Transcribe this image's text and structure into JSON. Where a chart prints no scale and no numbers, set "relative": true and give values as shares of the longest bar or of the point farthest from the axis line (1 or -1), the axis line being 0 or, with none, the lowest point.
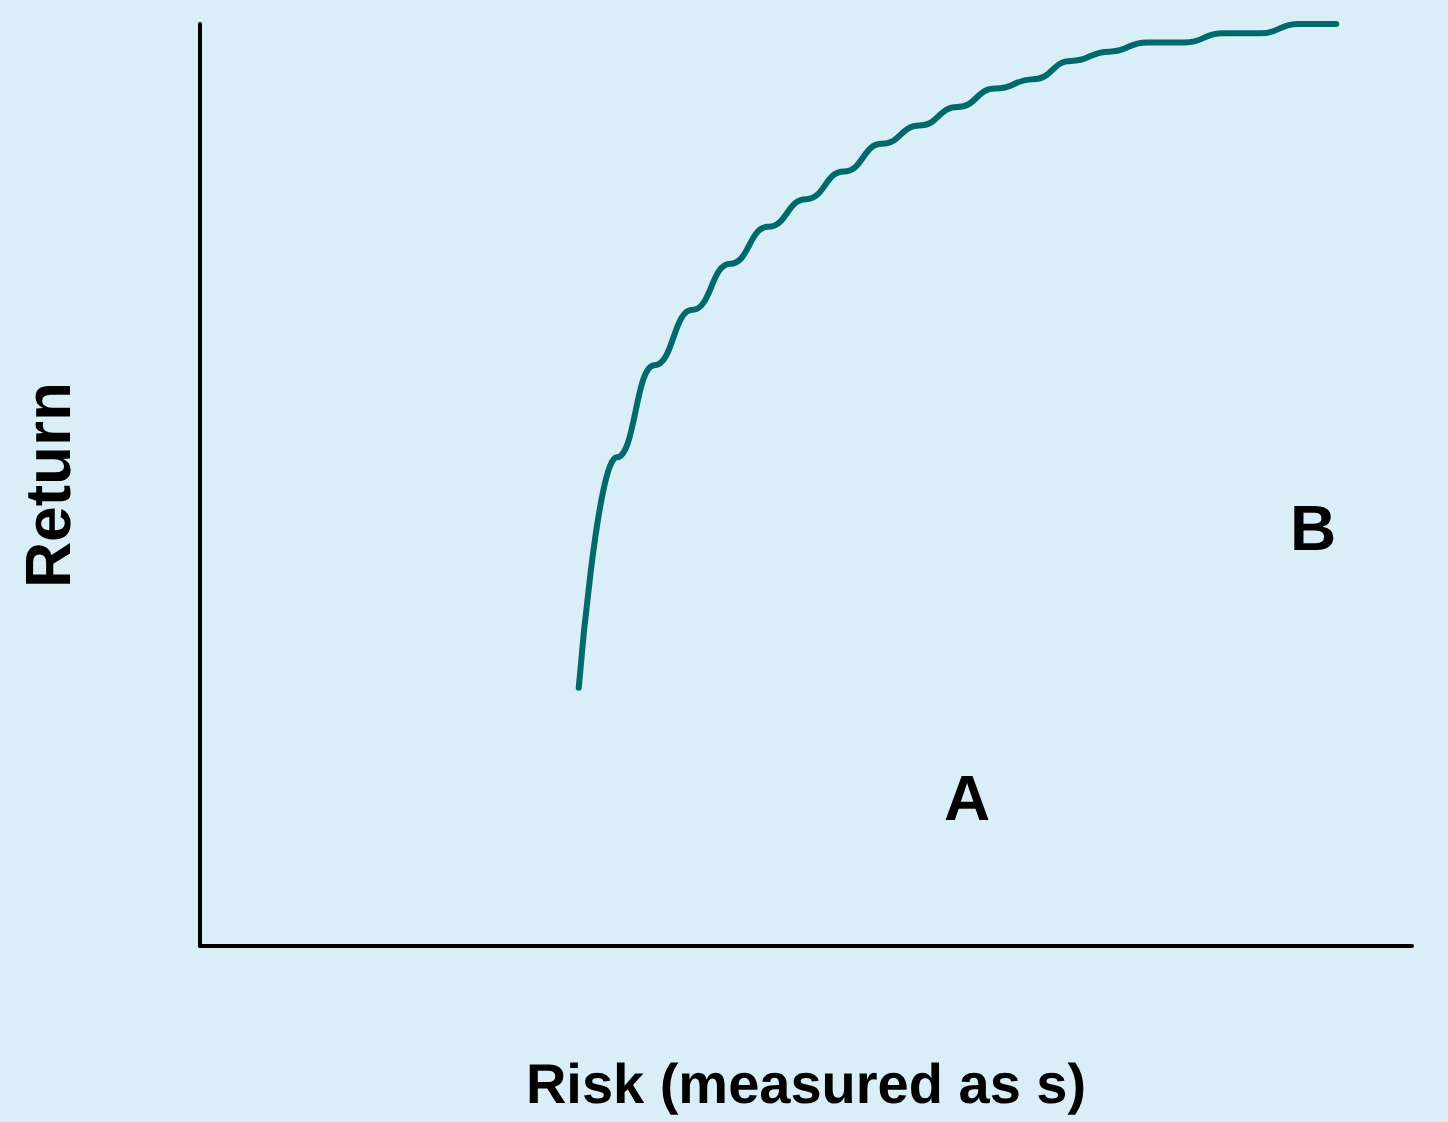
{
  "chart_data": {
    "type": "line",
    "relative": true,
    "xlabel": "Risk (measured as s)",
    "ylabel": "Return",
    "grid": false,
    "marker": "none",
    "line_style": "solid",
    "categories": [
      null,
      null,
      null,
      null,
      null,
      null,
      null,
      null,
      null,
      null,
      null,
      null,
      null,
      null,
      null,
      null,
      null,
      null,
      null,
      null,
      null,
      null,
      null,
      null,
      null,
      null,
      null,
      null,
      null,
      null,
      null,
      null,
      null
    ],
    "series": [
      {
        "color": "#00696b",
        "values": [
          null,
          null,
          null,
          null,
          null,
          null,
          null,
          null,
          null,
          null,
          0.28,
          0.53,
          0.63,
          0.69,
          0.74,
          0.78,
          0.81,
          0.84,
          0.87,
          0.89,
          0.91,
          0.93,
          0.94,
          0.96,
          0.97,
          0.98,
          0.98,
          0.99,
          0.99,
          1.0,
          1.0,
          null,
          null
        ]
      }
    ],
    "annotations": [
      "A",
      "B"
    ]
  }
}
